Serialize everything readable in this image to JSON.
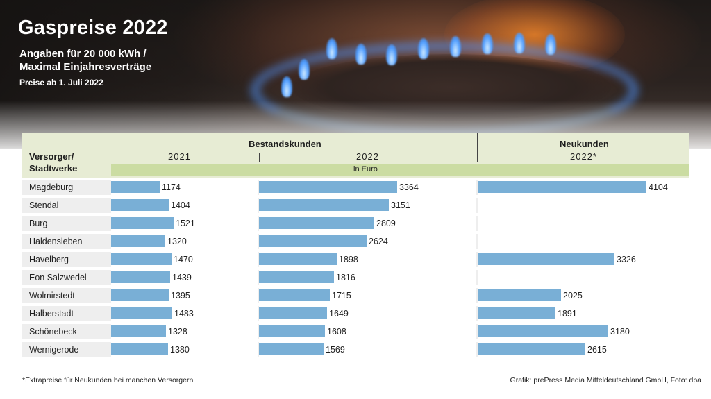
{
  "title": "Gaspreise 2022",
  "subtitle_line1": "Angaben für 20 000 kWh /",
  "subtitle_line2": "Maximal Einjahresverträge",
  "note": "Preise ab 1. Juli 2022",
  "header": {
    "row_label_line1": "Versorger/",
    "row_label_line2": "Stadtwerke",
    "group_existing": "Bestandskunden",
    "group_new": "Neukunden",
    "col_2021": "2021",
    "col_2022": "2022",
    "col_new_2022": "2022*",
    "unit": "in Euro"
  },
  "footnote": "*Extrapreise für Neukunden bei manchen Versorgern",
  "credit": "Grafik: prePress Media Mitteldeutschland GmbH, Foto: dpa",
  "colors": {
    "bar": "#79afd6",
    "header_bg": "#e7ecd4",
    "unit_band": "#cbdca2"
  },
  "chart_data": {
    "type": "bar",
    "title": "Gaspreise 2022",
    "categories": [
      "Magdeburg",
      "Stendal",
      "Burg",
      "Haldensleben",
      "Havelberg",
      "Eon Salzwedel",
      "Wolmirstedt",
      "Halberstadt",
      "Schönebeck",
      "Wernigerode"
    ],
    "series": [
      {
        "name": "Bestandskunden 2021",
        "values": [
          1174,
          1404,
          1521,
          1320,
          1470,
          1439,
          1395,
          1483,
          1328,
          1380
        ]
      },
      {
        "name": "Bestandskunden 2022",
        "values": [
          3364,
          3151,
          2809,
          2624,
          1898,
          1816,
          1715,
          1649,
          1608,
          1569
        ]
      },
      {
        "name": "Neukunden 2022*",
        "values": [
          4104,
          null,
          null,
          null,
          3326,
          null,
          2025,
          1891,
          3180,
          2615
        ]
      }
    ],
    "unit": "in Euro",
    "orientation": "horizontal"
  }
}
